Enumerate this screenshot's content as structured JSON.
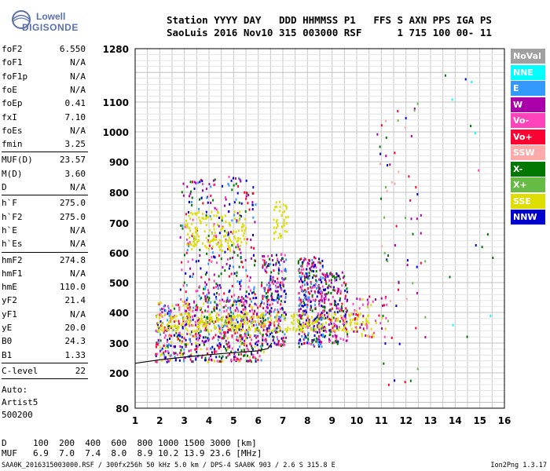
{
  "logo": {
    "line1": "Lowell",
    "line2": "DIGISONDE"
  },
  "header": {
    "line1": "Station YYYY DAY   DDD HHMMSS P1   FFS S AXN PPS IGA PS",
    "line2": "SaoLuis 2016 Nov10 315 003000 RSF      1 715 100 00- 11"
  },
  "params": [
    {
      "label": "foF2",
      "value": "6.550"
    },
    {
      "label": "foF1",
      "value": "N/A"
    },
    {
      "label": "foF1p",
      "value": "N/A"
    },
    {
      "label": "foE",
      "value": "N/A"
    },
    {
      "label": "foEp",
      "value": "0.41"
    },
    {
      "label": "fxI",
      "value": "7.10"
    },
    {
      "label": "foEs",
      "value": "N/A"
    },
    {
      "label": "fmin",
      "value": "3.25"
    },
    {
      "label": "MUF(D)",
      "value": "23.57"
    },
    {
      "label": "M(D)",
      "value": "3.60"
    },
    {
      "label": "D",
      "value": "N/A"
    },
    {
      "label": "h`F",
      "value": "275.0"
    },
    {
      "label": "h`F2",
      "value": "275.0"
    },
    {
      "label": "h`E",
      "value": "N/A"
    },
    {
      "label": "h`Es",
      "value": "N/A"
    },
    {
      "label": "hmF2",
      "value": "274.8"
    },
    {
      "label": "hmF1",
      "value": "N/A"
    },
    {
      "label": "hmE",
      "value": "110.0"
    },
    {
      "label": "yF2",
      "value": "21.4"
    },
    {
      "label": "yF1",
      "value": "N/A"
    },
    {
      "label": "yE",
      "value": "20.0"
    },
    {
      "label": "B0",
      "value": "24.3"
    },
    {
      "label": "B1",
      "value": "1.33"
    },
    {
      "label": "C-level",
      "value": "22"
    }
  ],
  "auto": {
    "line1": "Auto:",
    "line2": "Artist5",
    "line3": "500200"
  },
  "dmuf": {
    "d_label": "D",
    "d_values": "100  200  400  600  800 1000 1500 3000 [km]",
    "muf_label": "MUF",
    "muf_values": "6.9  7.0  7.4  8.0  8.9 10.2 13.9 23.6 [MHz]"
  },
  "footer": {
    "text": "SAA0K_2016315003000.RSF / 300fx256h 50 kHz 5.0 km / DPS-4 SAA0K 903 / 2.6 S 315.8 E",
    "version": "Ion2Png 1.3.17"
  },
  "legend": [
    {
      "label": "NoVal",
      "color": "#a0a0a0"
    },
    {
      "label": "NNE",
      "color": "#00ffff"
    },
    {
      "label": "E",
      "color": "#3399ff"
    },
    {
      "label": "W",
      "color": "#aa00aa"
    },
    {
      "label": "Vo-",
      "color": "#ff44bb"
    },
    {
      "label": "Vo+",
      "color": "#ff0033"
    },
    {
      "label": "SSW",
      "color": "#ffaaaa"
    },
    {
      "label": "X-",
      "color": "#007700"
    },
    {
      "label": "X+",
      "color": "#66bb44"
    },
    {
      "label": "SSE",
      "color": "#dddd00"
    },
    {
      "label": "NNW",
      "color": "#0000cc"
    }
  ],
  "chart_data": {
    "type": "scatter",
    "xlim": [
      1,
      16
    ],
    "ylim": [
      80,
      1280
    ],
    "x_ticks": [
      "1",
      "2",
      "3",
      "4",
      "5",
      "6",
      "7",
      "8",
      "9",
      "10",
      "11",
      "12",
      "13",
      "14",
      "15",
      "16"
    ],
    "y_ticks": [
      {
        "value": 1280,
        "label": "1280"
      },
      {
        "value": 1100,
        "label": "1100"
      },
      {
        "value": 1000,
        "label": "1000"
      },
      {
        "value": 900,
        "label": "900"
      },
      {
        "value": 800,
        "label": "800"
      },
      {
        "value": 700,
        "label": "700"
      },
      {
        "value": 600,
        "label": "600"
      },
      {
        "value": 500,
        "label": "500"
      },
      {
        "value": 400,
        "label": "400"
      },
      {
        "value": 300,
        "label": "300"
      },
      {
        "value": 200,
        "label": "200"
      },
      {
        "value": 80,
        "label": "80"
      }
    ],
    "grid": true,
    "trace_profile": {
      "x": [
        1.0,
        2.0,
        3.0,
        4.0,
        5.0,
        6.0,
        6.4,
        6.55
      ],
      "y": [
        232,
        244,
        253,
        261,
        268,
        274,
        282,
        300
      ]
    },
    "echo_clusters": [
      {
        "x": [
          1.8,
          6.2
        ],
        "y": [
          240,
          440
        ],
        "colors": [
          "#aa00aa",
          "#ff44bb",
          "#3399ff",
          "#ff0033",
          "#007700",
          "#dddd00",
          "#0000cc"
        ],
        "n": 700
      },
      {
        "x": [
          2.8,
          5.9
        ],
        "y": [
          440,
          860
        ],
        "colors": [
          "#aa00aa",
          "#ff44bb",
          "#ff0033",
          "#0000cc",
          "#3399ff",
          "#007700"
        ],
        "n": 320
      },
      {
        "x": [
          3.0,
          5.5
        ],
        "y": [
          610,
          740
        ],
        "colors": [
          "#dddd00"
        ],
        "n": 150
      },
      {
        "x": [
          6.1,
          7.1
        ],
        "y": [
          290,
          600
        ],
        "colors": [
          "#aa00aa",
          "#ff44bb",
          "#ff0033",
          "#007700",
          "#3399ff",
          "#0000cc"
        ],
        "n": 260
      },
      {
        "x": [
          6.6,
          7.2
        ],
        "y": [
          650,
          780
        ],
        "colors": [
          "#dddd00"
        ],
        "n": 40
      },
      {
        "x": [
          7.6,
          8.6
        ],
        "y": [
          290,
          590
        ],
        "colors": [
          "#aa00aa",
          "#ff44bb",
          "#ff0033",
          "#007700",
          "#0000cc",
          "#3399ff"
        ],
        "n": 330
      },
      {
        "x": [
          8.6,
          9.6
        ],
        "y": [
          300,
          540
        ],
        "colors": [
          "#aa00aa",
          "#ff44bb",
          "#ff0033",
          "#0000cc",
          "#007700"
        ],
        "n": 200
      },
      {
        "x": [
          1.8,
          10.5
        ],
        "y": [
          340,
          400
        ],
        "colors": [
          "#dddd00"
        ],
        "n": 320
      },
      {
        "x": [
          9.8,
          11.2
        ],
        "y": [
          320,
          460
        ],
        "colors": [
          "#ff0033",
          "#ff44bb",
          "#aa00aa",
          "#dddd00"
        ],
        "n": 60
      },
      {
        "x": [
          10.8,
          12.8
        ],
        "y": [
          160,
          1130
        ],
        "colors": [
          "#007700",
          "#66bb44",
          "#ff0033",
          "#aa00aa",
          "#0000cc",
          "#ffaaaa"
        ],
        "n": 70
      },
      {
        "x": [
          13.5,
          16
        ],
        "y": [
          180,
          1240
        ],
        "colors": [
          "#0000cc",
          "#00ffff",
          "#007700",
          "#ff44bb"
        ],
        "n": 15
      }
    ]
  }
}
